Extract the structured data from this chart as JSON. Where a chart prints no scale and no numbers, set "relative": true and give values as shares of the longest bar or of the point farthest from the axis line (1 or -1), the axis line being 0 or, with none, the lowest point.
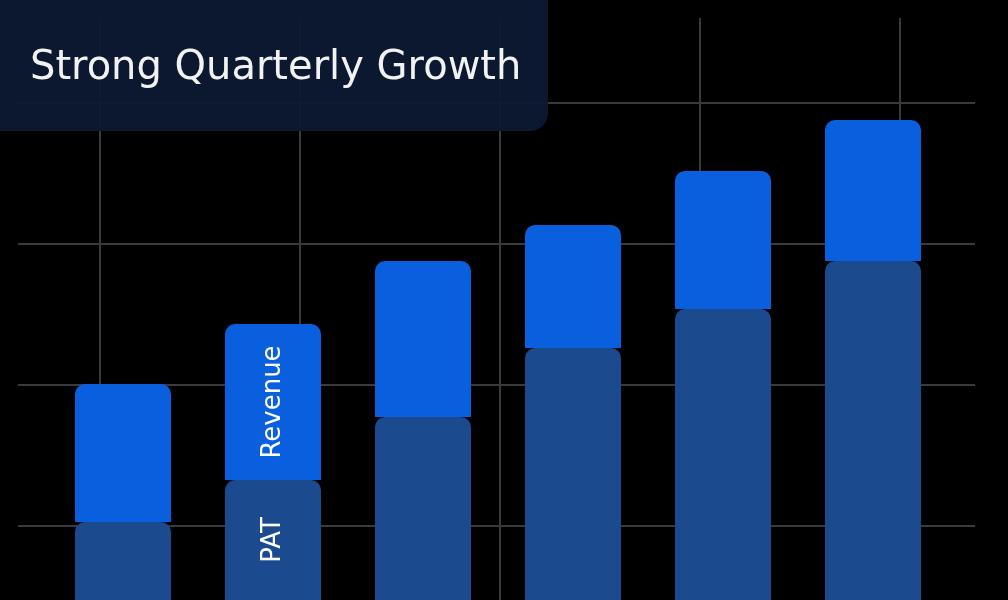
{
  "chart_data": {
    "type": "bar",
    "title": "Strong Quarterly Growth",
    "relative": true,
    "stacked": true,
    "grid": true,
    "legend": false,
    "categories": [
      null,
      null,
      null,
      null,
      null,
      null
    ],
    "series": [
      {
        "name": "PAT",
        "color": "#1b4a8f",
        "values": [
          0.1625,
          0.25,
          0.381,
          0.525,
          0.606,
          0.706
        ]
      },
      {
        "name": "Revenue",
        "color": "#0a5fde",
        "values": [
          0.2875,
          0.325,
          0.325,
          0.256,
          0.288,
          0.294
        ]
      }
    ]
  }
}
